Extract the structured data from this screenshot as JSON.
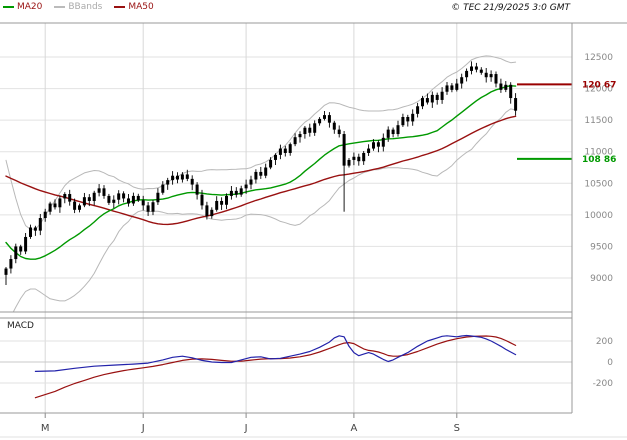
{
  "header": {
    "legend": [
      {
        "label": "MA20",
        "text_color": "#991111",
        "swatch_color": "#009900"
      },
      {
        "label": "BBands",
        "text_color": "#aaaaaa",
        "swatch_color": "#bbbbbb"
      },
      {
        "label": "MA50",
        "text_color": "#991111",
        "swatch_color": "#991111"
      }
    ],
    "copyright": "© TEC 21/9/2025 3:0 GMT"
  },
  "chart_data": {
    "type": "candlestick",
    "title": "",
    "price_axis": {
      "ticks": [
        12500,
        12000,
        11500,
        11000,
        10500,
        10000,
        9500,
        9000
      ],
      "text_color": "#888888"
    },
    "x_axis": {
      "month_labels": [
        {
          "label": "M",
          "index": 8
        },
        {
          "label": "J",
          "index": 28
        },
        {
          "label": "J",
          "index": 49
        },
        {
          "label": "A",
          "index": 71
        },
        {
          "label": "S",
          "index": 92
        }
      ]
    },
    "levels": [
      {
        "label": "120 67",
        "value": 12067,
        "color": "#990000"
      },
      {
        "label": "108 86",
        "value": 10886,
        "color": "#009900"
      }
    ],
    "series": {
      "first_open": 9050,
      "closes": [
        9150,
        9300,
        9500,
        9420,
        9650,
        9800,
        9750,
        9950,
        10050,
        10180,
        10120,
        10260,
        10330,
        10210,
        10080,
        10150,
        10280,
        10220,
        10350,
        10420,
        10300,
        10190,
        10240,
        10340,
        10260,
        10180,
        10300,
        10230,
        10150,
        10050,
        10200,
        10350,
        10480,
        10550,
        10620,
        10560,
        10640,
        10570,
        10480,
        10320,
        10150,
        9980,
        10080,
        10220,
        10160,
        10300,
        10380,
        10320,
        10420,
        10480,
        10560,
        10680,
        10620,
        10750,
        10870,
        10950,
        11050,
        10980,
        11120,
        11230,
        11280,
        11380,
        11300,
        11450,
        11520,
        11580,
        11460,
        11350,
        11280,
        10780,
        10870,
        10920,
        10850,
        10980,
        11050,
        11150,
        11080,
        11220,
        11350,
        11280,
        11420,
        11550,
        11480,
        11600,
        11720,
        11850,
        11780,
        11900,
        11820,
        11950,
        12050,
        11980,
        12080,
        12180,
        12280,
        12350,
        12300,
        12250,
        12180,
        12230,
        12080,
        11980,
        12060,
        11850,
        11650
      ],
      "pre_history": [
        11100,
        11150,
        11200,
        11250,
        11300,
        11280,
        11320,
        11350,
        11300,
        11250,
        11200,
        11250,
        11300,
        11320,
        11280,
        11240,
        11280,
        11320,
        11360,
        11400,
        11380,
        11400,
        11420,
        11380,
        11350,
        11380,
        11400,
        11380,
        11350,
        11380,
        11300,
        11150,
        10900,
        10600,
        10300,
        10000,
        9750,
        9550,
        9400,
        9300,
        9250,
        9200,
        9150,
        9100,
        9150,
        9100,
        9050,
        9100,
        9050,
        9000
      ],
      "low_overrides": {
        "0": 8890,
        "69": 10050
      },
      "high_overrides": {
        "95": 12430
      }
    },
    "indicators": {
      "ma20_window": 20,
      "ma50_window": 50,
      "bb_mult": 2
    },
    "macd": {
      "label": "MACD",
      "axis_ticks": [
        200,
        0,
        -200
      ],
      "line_color": "#2222aa",
      "signal_color": "#991111",
      "line": [
        [
          6,
          -90
        ],
        [
          10,
          -85
        ],
        [
          14,
          -60
        ],
        [
          18,
          -40
        ],
        [
          22,
          -30
        ],
        [
          26,
          -20
        ],
        [
          29,
          -10
        ],
        [
          32,
          20
        ],
        [
          34,
          45
        ],
        [
          36,
          55
        ],
        [
          38,
          40
        ],
        [
          40,
          15
        ],
        [
          42,
          0
        ],
        [
          44,
          -5
        ],
        [
          46,
          -5
        ],
        [
          48,
          20
        ],
        [
          50,
          45
        ],
        [
          52,
          50
        ],
        [
          54,
          30
        ],
        [
          56,
          35
        ],
        [
          58,
          55
        ],
        [
          60,
          75
        ],
        [
          62,
          100
        ],
        [
          64,
          140
        ],
        [
          66,
          190
        ],
        [
          67,
          230
        ],
        [
          68,
          250
        ],
        [
          69,
          240
        ],
        [
          70,
          150
        ],
        [
          71,
          90
        ],
        [
          72,
          60
        ],
        [
          73,
          75
        ],
        [
          74,
          90
        ],
        [
          75,
          75
        ],
        [
          76,
          50
        ],
        [
          77,
          25
        ],
        [
          78,
          5
        ],
        [
          79,
          20
        ],
        [
          80,
          45
        ],
        [
          82,
          90
        ],
        [
          84,
          150
        ],
        [
          86,
          200
        ],
        [
          88,
          230
        ],
        [
          89,
          245
        ],
        [
          90,
          250
        ],
        [
          91,
          245
        ],
        [
          92,
          240
        ],
        [
          93,
          248
        ],
        [
          94,
          252
        ],
        [
          95,
          248
        ],
        [
          96,
          242
        ],
        [
          97,
          235
        ],
        [
          98,
          220
        ],
        [
          99,
          200
        ],
        [
          100,
          175
        ],
        [
          101,
          150
        ],
        [
          102,
          120
        ],
        [
          103,
          95
        ],
        [
          104,
          70
        ]
      ],
      "signal": [
        [
          6,
          -340
        ],
        [
          8,
          -310
        ],
        [
          10,
          -280
        ],
        [
          12,
          -240
        ],
        [
          14,
          -205
        ],
        [
          16,
          -175
        ],
        [
          18,
          -145
        ],
        [
          20,
          -120
        ],
        [
          22,
          -100
        ],
        [
          24,
          -82
        ],
        [
          26,
          -68
        ],
        [
          28,
          -55
        ],
        [
          30,
          -42
        ],
        [
          32,
          -25
        ],
        [
          34,
          -5
        ],
        [
          36,
          15
        ],
        [
          38,
          28
        ],
        [
          40,
          30
        ],
        [
          42,
          25
        ],
        [
          44,
          15
        ],
        [
          46,
          8
        ],
        [
          48,
          8
        ],
        [
          50,
          18
        ],
        [
          52,
          28
        ],
        [
          54,
          32
        ],
        [
          56,
          32
        ],
        [
          58,
          38
        ],
        [
          60,
          50
        ],
        [
          62,
          68
        ],
        [
          64,
          95
        ],
        [
          66,
          130
        ],
        [
          68,
          165
        ],
        [
          69,
          180
        ],
        [
          70,
          185
        ],
        [
          71,
          175
        ],
        [
          72,
          150
        ],
        [
          73,
          125
        ],
        [
          74,
          110
        ],
        [
          75,
          105
        ],
        [
          76,
          95
        ],
        [
          77,
          80
        ],
        [
          78,
          62
        ],
        [
          79,
          55
        ],
        [
          80,
          55
        ],
        [
          82,
          70
        ],
        [
          84,
          100
        ],
        [
          86,
          135
        ],
        [
          88,
          170
        ],
        [
          90,
          200
        ],
        [
          92,
          222
        ],
        [
          94,
          238
        ],
        [
          96,
          246
        ],
        [
          98,
          248
        ],
        [
          99,
          245
        ],
        [
          100,
          238
        ],
        [
          101,
          225
        ],
        [
          102,
          205
        ],
        [
          103,
          182
        ],
        [
          104,
          158
        ]
      ]
    },
    "colors": {
      "candle": "#000000",
      "ma20": "#009900",
      "ma50": "#991111",
      "bbands": "#b8b8b8",
      "grid": "#e2e2e2",
      "month_grid": "#d8d8d8",
      "frame": "#999999",
      "axis_text": "#888888",
      "month_text": "#444444"
    }
  }
}
